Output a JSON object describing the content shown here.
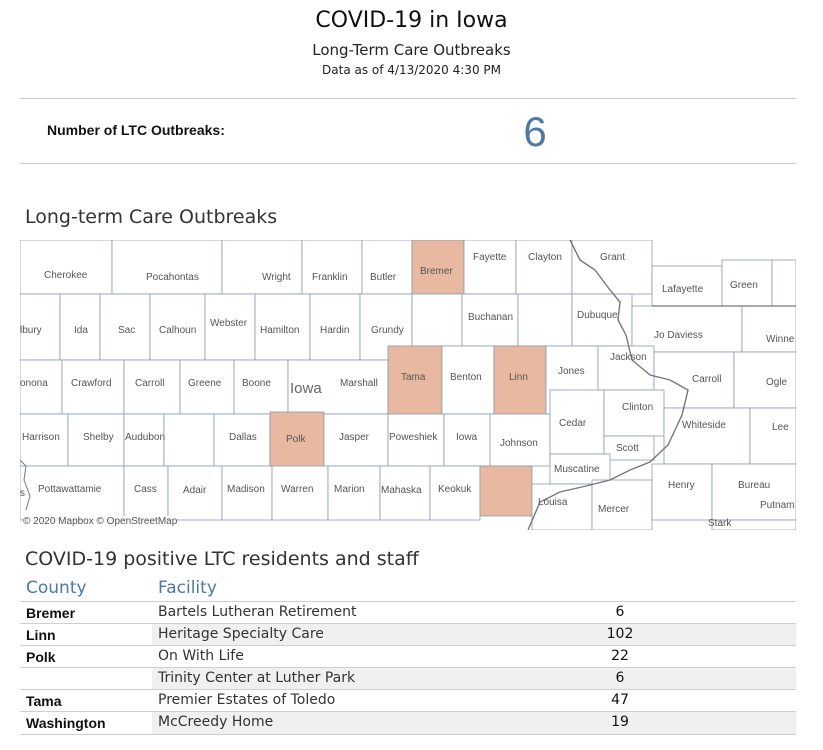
{
  "header": {
    "title": "COVID-19 in Iowa",
    "subtitle": "Long-Term Care Outbreaks",
    "as_of": "Data as of 4/13/2020 4:30 PM"
  },
  "kpi": {
    "label": "Number of LTC Outbreaks:",
    "value": "6"
  },
  "map": {
    "title": "Long-term Care Outbreaks",
    "state_label": "Iowa",
    "attribution": "© 2020 Mapbox © OpenStreetMap",
    "highlight_color": "#e8b9a0",
    "counties": [
      "Cherokee",
      "Pocahontas",
      "Wright",
      "Franklin",
      "Butler",
      "Bremer",
      "Fayette",
      "Clayton",
      "Grant",
      "Lafayette",
      "Green",
      "Buchanan",
      "Dubuque",
      "Jo Daviess",
      "Winne",
      "Ida",
      "Sac",
      "Calhoun",
      "Webster",
      "Hamilton",
      "Hardin",
      "Grundy",
      "lbury",
      "Crawford",
      "Carroll",
      "Greene",
      "Boone",
      "Marshall",
      "Tama",
      "Benton",
      "Linn",
      "Jones",
      "Jackson",
      "Carroll",
      "Ogle",
      "onona",
      "Harrison",
      "Shelby",
      "Audubon",
      "Dallas",
      "Polk",
      "Jasper",
      "Poweshiek",
      "Iowa",
      "Johnson",
      "Cedar",
      "Clinton",
      "Whiteside",
      "Lee",
      "Scott",
      "Muscatine",
      "Pottawattamie",
      "Cass",
      "Adair",
      "Madison",
      "Warren",
      "Marion",
      "Mahaska",
      "Keokuk",
      "Louisa",
      "Mercer",
      "Henry",
      "Bureau",
      "Putnam",
      "Stark",
      "s"
    ],
    "highlighted": [
      "Bremer",
      "Tama",
      "Linn",
      "Polk",
      "Washington"
    ]
  },
  "table": {
    "title": "COVID-19 positive LTC residents and staff",
    "columns": {
      "county": "County",
      "facility": "Facility"
    },
    "rows": [
      {
        "county": "Bremer",
        "facility": "Bartels Lutheran Retirement",
        "count": "6"
      },
      {
        "county": "Linn",
        "facility": "Heritage Specialty Care",
        "count": "102"
      },
      {
        "county": "Polk",
        "facility": "On With Life",
        "count": "22"
      },
      {
        "county": "",
        "facility": "Trinity Center at Luther Park",
        "count": "6"
      },
      {
        "county": "Tama",
        "facility": "Premier Estates of Toledo",
        "count": "47"
      },
      {
        "county": "Washington",
        "facility": "McCreedy Home",
        "count": "19"
      }
    ]
  }
}
